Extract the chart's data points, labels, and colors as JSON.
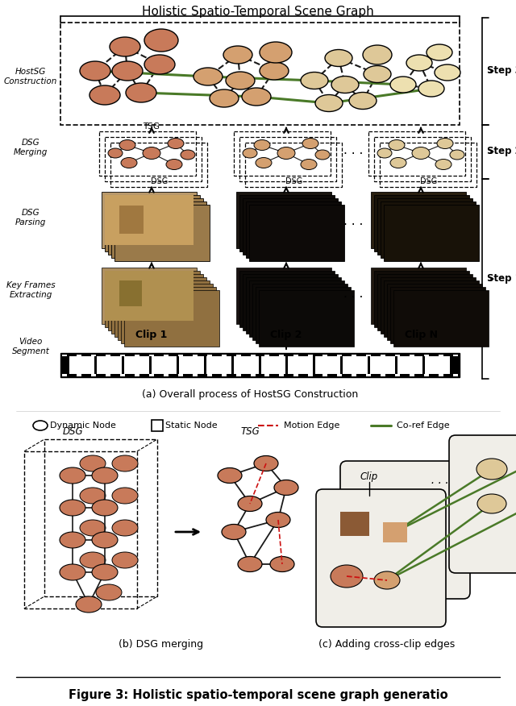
{
  "title_top": "Holistic Spatio-Temporal Scene Graph",
  "caption_a": "(a) Overall process of HostSG Construction",
  "caption_b": "(b) DSG merging",
  "caption_c": "(c) Adding cross-clip edges",
  "clip_labels": [
    "Clip 1",
    "Clip 2",
    "Clip N"
  ],
  "label_left": [
    "HostSG\nConstruction",
    "DSG\nMerging",
    "DSG\nParsing",
    "Key Frames\nExtracting",
    "Video\nSegment"
  ],
  "nc_dark": "#C87A5A",
  "nc_med": "#D4A070",
  "nc_light": "#DEC898",
  "nc_lightest": "#EDE0B0",
  "nc_square_dark": "#8B5A35",
  "nc_square_med": "#C8A060",
  "nc_square_light": "#D8C888",
  "green": "#4A7A28",
  "black": "#1A1A1A",
  "red": "#CC1111",
  "white": "#FFFFFF",
  "fig_caption": "Figure 3: Holistic spatio-temporal scene graph generatio"
}
